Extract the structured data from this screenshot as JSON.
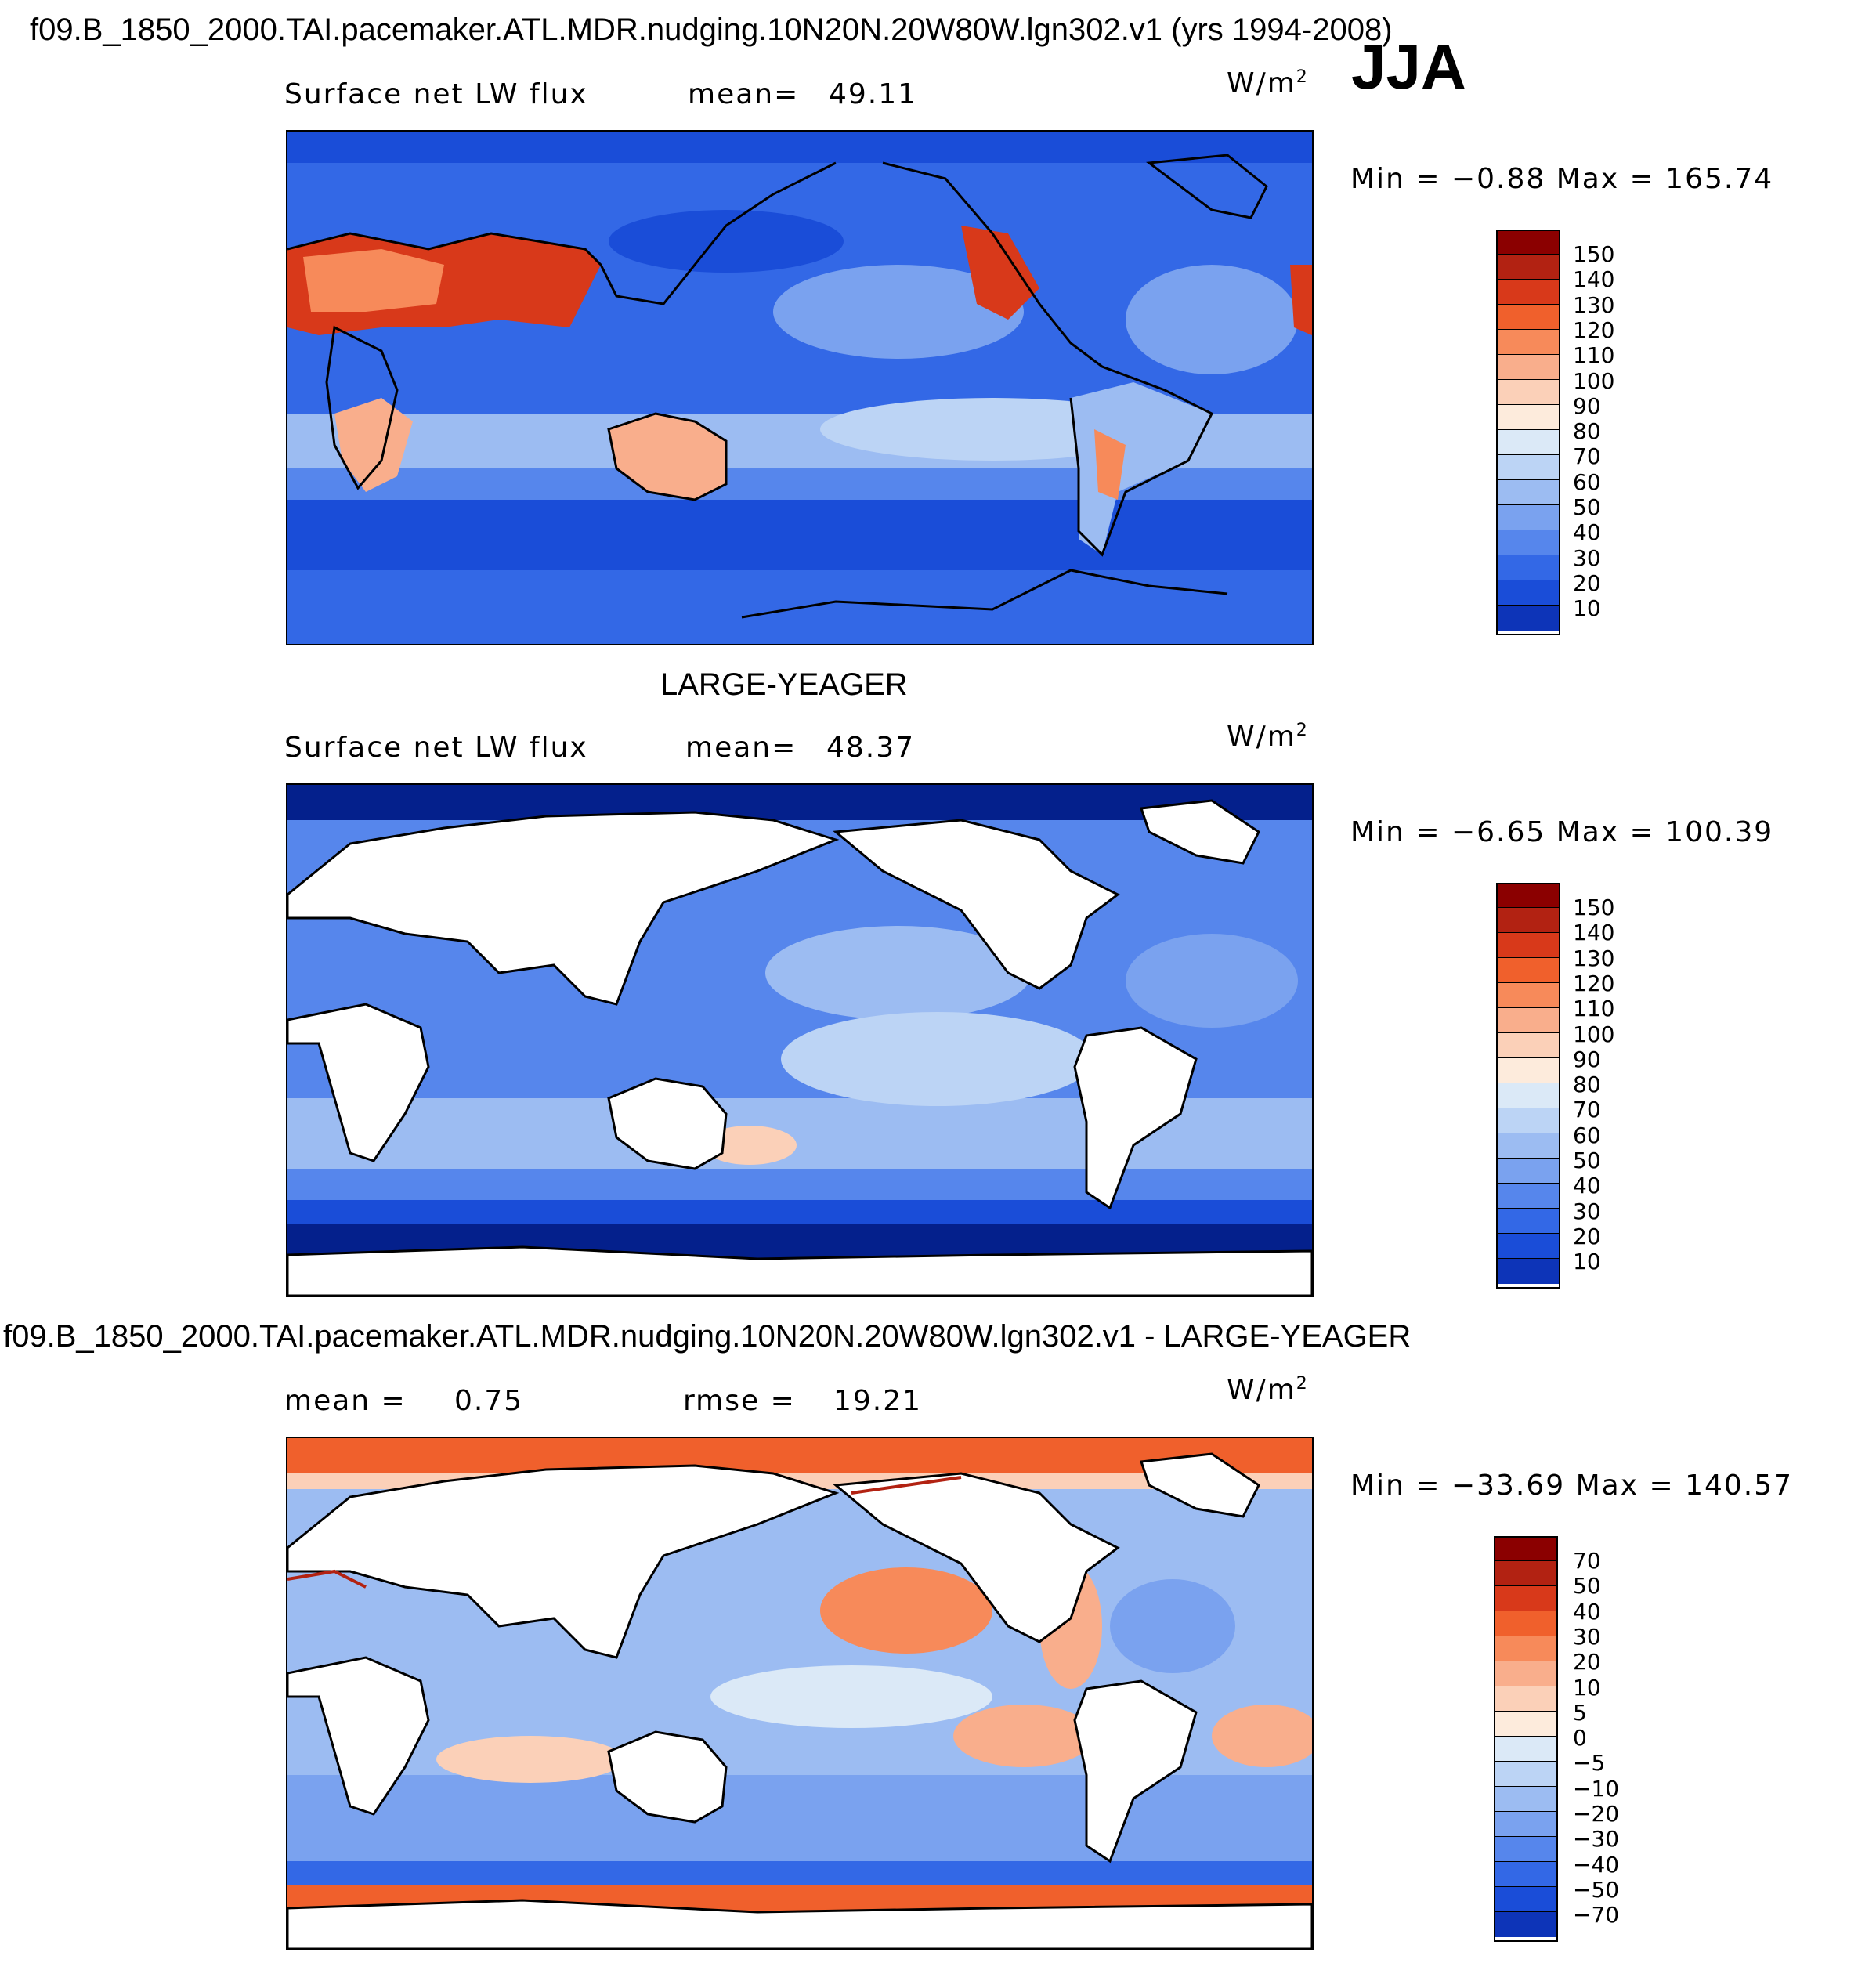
{
  "header": {
    "case_title": "f09.B_1850_2000.TAI.pacemaker.ATL.MDR.nudging.10N20N.20W80W.lgn302.v1 (yrs 1994-2008)",
    "season": "JJA"
  },
  "panel1": {
    "variable": "Surface net LW flux",
    "mean_label": "mean=",
    "mean_value": "49.11",
    "units": "W/m",
    "units_exp": "2",
    "minmax": "Min =   −0.88 Max = 165.74",
    "colorbar_ticks": [
      "150",
      "140",
      "130",
      "120",
      "110",
      "100",
      "90",
      "80",
      "70",
      "60",
      "50",
      "40",
      "30",
      "20",
      "10"
    ]
  },
  "panel2": {
    "title": "LARGE-YEAGER",
    "variable": "Surface net LW flux",
    "mean_label": "mean=",
    "mean_value": "48.37",
    "units": "W/m",
    "units_exp": "2",
    "minmax": "Min =   −6.65 Max = 100.39",
    "colorbar_ticks": [
      "150",
      "140",
      "130",
      "120",
      "110",
      "100",
      "90",
      "80",
      "70",
      "60",
      "50",
      "40",
      "30",
      "20",
      "10"
    ]
  },
  "panel3": {
    "title": "f09.B_1850_2000.TAI.pacemaker.ATL.MDR.nudging.10N20N.20W80W.lgn302.v1 - LARGE-YEAGER",
    "mean_label": "mean =",
    "mean_value": "0.75",
    "rmse_label": "rmse =",
    "rmse_value": "19.21",
    "units": "W/m",
    "units_exp": "2",
    "minmax": "Min = −33.69 Max = 140.57",
    "colorbar_ticks": [
      "70",
      "50",
      "40",
      "30",
      "20",
      "10",
      "5",
      "0",
      "−5",
      "−10",
      "−20",
      "−30",
      "−40",
      "−50",
      "−70"
    ]
  },
  "colors": {
    "abs_scale": [
      "#8b0000",
      "#b22212",
      "#d8391a",
      "#f0602c",
      "#f78a5a",
      "#f9ae8c",
      "#fbd0b8",
      "#fdebdc",
      "#dbe9f7",
      "#bcd4f5",
      "#9cbcf2",
      "#7aa2ef",
      "#5686ec",
      "#3368e6",
      "#1a4dd8",
      "#0d34b8",
      "#04208c"
    ],
    "diff_scale": [
      "#8b0000",
      "#b22212",
      "#d8391a",
      "#f0602c",
      "#f78a5a",
      "#f9ae8c",
      "#fbd0b8",
      "#fdebdc",
      "#dbe9f7",
      "#bcd4f5",
      "#9cbcf2",
      "#7aa2ef",
      "#5686ec",
      "#3368e6",
      "#1a4dd8",
      "#0d34b8",
      "#04208c"
    ],
    "land_line": "#000000"
  }
}
